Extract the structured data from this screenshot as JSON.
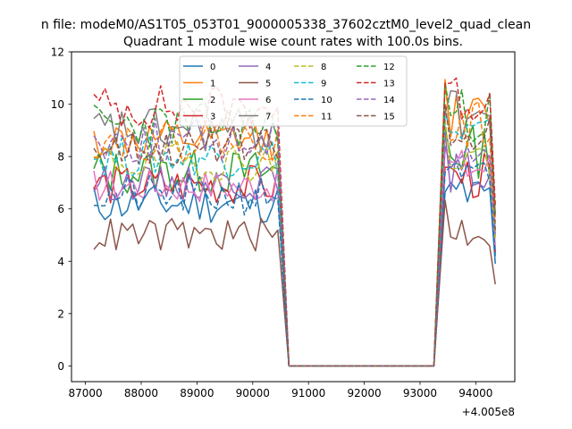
{
  "figure": {
    "suptitle": "n file: modeM0/AS1T05_053T01_9000005338_37602cztM0_level2_quad_clean",
    "x_offset_label": "+4.005e8"
  },
  "chart_data": {
    "type": "line",
    "title": "Quadrant 1 module wise count rates with 100.0s bins.",
    "xlabel": "",
    "ylabel": "",
    "xlim": [
      86750,
      94700
    ],
    "ylim": [
      -0.6,
      12
    ],
    "x_offset": 400500000,
    "xticks": [
      87000,
      88000,
      89000,
      90000,
      91000,
      92000,
      93000,
      94000
    ],
    "xtick_labels": [
      "87000",
      "88000",
      "89000",
      "90000",
      "91000",
      "92000",
      "93000",
      "94000"
    ],
    "yticks": [
      0,
      2,
      4,
      6,
      8,
      10,
      12
    ],
    "ytick_labels": [
      "0",
      "2",
      "4",
      "6",
      "8",
      "10",
      "12"
    ],
    "grid": false,
    "legend": {
      "placement": "upper center",
      "columns": 4
    },
    "segments": {
      "active_1": {
        "start": 87150,
        "step": 100,
        "count": 34
      },
      "gap_zero": [
        90650,
        93250
      ],
      "active_2": {
        "start": 93450,
        "step": 100,
        "count": 10
      }
    },
    "series": [
      {
        "name": "0",
        "color": "#1f77b4",
        "dash": "solid",
        "level_1": 6.2,
        "level_2": 6.5,
        "spread": 0.35
      },
      {
        "name": "1",
        "color": "#ff7f0e",
        "dash": "solid",
        "level_1": 8.6,
        "level_2": 9.5,
        "spread": 0.35
      },
      {
        "name": "2",
        "color": "#2ca02c",
        "dash": "solid",
        "level_1": 7.4,
        "level_2": 8.2,
        "spread": 0.4
      },
      {
        "name": "3",
        "color": "#d62728",
        "dash": "solid",
        "level_1": 6.9,
        "level_2": 7.2,
        "spread": 0.35
      },
      {
        "name": "4",
        "color": "#9467bd",
        "dash": "solid",
        "level_1": 7.0,
        "level_2": 7.4,
        "spread": 0.3
      },
      {
        "name": "5",
        "color": "#8c564b",
        "dash": "solid",
        "level_1": 5.0,
        "level_2": 5.2,
        "spread": 0.3
      },
      {
        "name": "6",
        "color": "#e377c2",
        "dash": "solid",
        "level_1": 6.9,
        "level_2": 7.6,
        "spread": 0.3
      },
      {
        "name": "7",
        "color": "#7f7f7f",
        "dash": "solid",
        "level_1": 9.0,
        "level_2": 9.6,
        "spread": 0.4
      },
      {
        "name": "8",
        "color": "#bcbd22",
        "dash": "dashed",
        "level_1": 7.8,
        "level_2": 8.0,
        "spread": 0.35
      },
      {
        "name": "9",
        "color": "#17becf",
        "dash": "dashed",
        "level_1": 8.0,
        "level_2": 8.8,
        "spread": 0.35
      },
      {
        "name": "10",
        "color": "#1f77b4",
        "dash": "dashed",
        "level_1": 6.5,
        "level_2": 7.0,
        "spread": 0.35
      },
      {
        "name": "11",
        "color": "#ff7f0e",
        "dash": "dashed",
        "level_1": 8.6,
        "level_2": 9.2,
        "spread": 0.35
      },
      {
        "name": "12",
        "color": "#2ca02c",
        "dash": "dashed",
        "level_1": 9.2,
        "level_2": 9.6,
        "spread": 0.4
      },
      {
        "name": "13",
        "color": "#d62728",
        "dash": "dashed",
        "level_1": 9.9,
        "level_2": 10.2,
        "spread": 0.4
      },
      {
        "name": "14",
        "color": "#9467bd",
        "dash": "dashed",
        "level_1": 8.6,
        "level_2": 8.4,
        "spread": 0.4
      },
      {
        "name": "15",
        "color": "#8c564b",
        "dash": "dashed",
        "level_1": 8.4,
        "level_2": 8.6,
        "spread": 0.35
      }
    ]
  }
}
